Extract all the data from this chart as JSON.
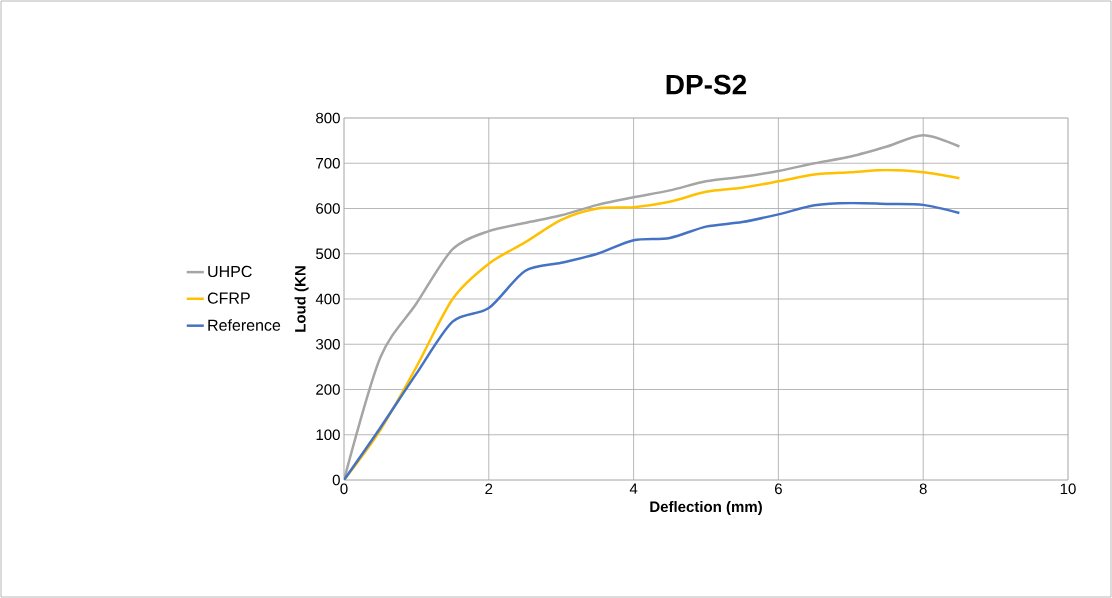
{
  "chart_data": {
    "type": "line",
    "title": "DP-S2",
    "xlabel": "Deflection (mm)",
    "ylabel": "Loud (KN",
    "x": [
      0,
      0.5,
      1,
      1.5,
      2,
      2.5,
      3,
      3.5,
      4,
      4.5,
      5,
      5.5,
      6,
      6.5,
      7,
      7.5,
      8,
      8.5
    ],
    "series": [
      {
        "name": "UHPC",
        "color": "#a5a5a5",
        "values": [
          0,
          270,
          390,
          510,
          550,
          568,
          585,
          608,
          625,
          640,
          660,
          670,
          683,
          700,
          715,
          737,
          762,
          737
        ]
      },
      {
        "name": "CFRP",
        "color": "#ffc000",
        "values": [
          0,
          110,
          250,
          400,
          478,
          525,
          575,
          600,
          603,
          615,
          637,
          646,
          660,
          675,
          680,
          685,
          680,
          667
        ]
      },
      {
        "name": "Reference",
        "color": "#4472c4",
        "values": [
          0,
          115,
          235,
          350,
          380,
          462,
          480,
          500,
          530,
          535,
          560,
          570,
          587,
          607,
          612,
          610,
          608,
          590
        ]
      }
    ],
    "xlim": [
      0,
      10
    ],
    "ylim": [
      0,
      800
    ],
    "xticks": [
      0,
      2,
      4,
      6,
      8,
      10
    ],
    "yticks": [
      0,
      100,
      200,
      300,
      400,
      500,
      600,
      700,
      800
    ],
    "grid": true,
    "legend": "left",
    "marker": "none",
    "line_style": "solid"
  }
}
